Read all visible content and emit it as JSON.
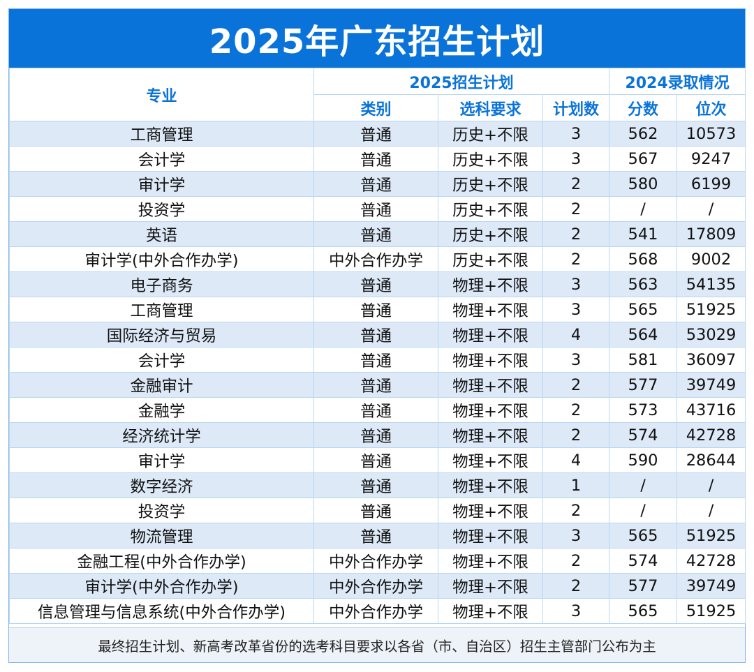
{
  "title": "2025年广东招生计划",
  "header": {
    "major": "专业",
    "plan_group": "2025招生计划",
    "admit_group": "2024录取情况",
    "category": "类别",
    "subject_req": "选科要求",
    "plan_count": "计划数",
    "score": "分数",
    "rank": "位次"
  },
  "rows": [
    {
      "major": "工商管理",
      "category": "普通",
      "subject": "历史+不限",
      "count": "3",
      "score": "562",
      "rank": "10573"
    },
    {
      "major": "会计学",
      "category": "普通",
      "subject": "历史+不限",
      "count": "3",
      "score": "567",
      "rank": "9247"
    },
    {
      "major": "审计学",
      "category": "普通",
      "subject": "历史+不限",
      "count": "2",
      "score": "580",
      "rank": "6199"
    },
    {
      "major": "投资学",
      "category": "普通",
      "subject": "历史+不限",
      "count": "2",
      "score": "/",
      "rank": "/"
    },
    {
      "major": "英语",
      "category": "普通",
      "subject": "历史+不限",
      "count": "2",
      "score": "541",
      "rank": "17809"
    },
    {
      "major": "审计学(中外合作办学)",
      "category": "中外合作办学",
      "subject": "历史+不限",
      "count": "2",
      "score": "568",
      "rank": "9002"
    },
    {
      "major": "电子商务",
      "category": "普通",
      "subject": "物理+不限",
      "count": "3",
      "score": "563",
      "rank": "54135"
    },
    {
      "major": "工商管理",
      "category": "普通",
      "subject": "物理+不限",
      "count": "3",
      "score": "565",
      "rank": "51925"
    },
    {
      "major": "国际经济与贸易",
      "category": "普通",
      "subject": "物理+不限",
      "count": "4",
      "score": "564",
      "rank": "53029"
    },
    {
      "major": "会计学",
      "category": "普通",
      "subject": "物理+不限",
      "count": "3",
      "score": "581",
      "rank": "36097"
    },
    {
      "major": "金融审计",
      "category": "普通",
      "subject": "物理+不限",
      "count": "2",
      "score": "577",
      "rank": "39749"
    },
    {
      "major": "金融学",
      "category": "普通",
      "subject": "物理+不限",
      "count": "2",
      "score": "573",
      "rank": "43716"
    },
    {
      "major": "经济统计学",
      "category": "普通",
      "subject": "物理+不限",
      "count": "2",
      "score": "574",
      "rank": "42728"
    },
    {
      "major": "审计学",
      "category": "普通",
      "subject": "物理+不限",
      "count": "4",
      "score": "590",
      "rank": "28644"
    },
    {
      "major": "数字经济",
      "category": "普通",
      "subject": "物理+不限",
      "count": "1",
      "score": "/",
      "rank": "/"
    },
    {
      "major": "投资学",
      "category": "普通",
      "subject": "物理+不限",
      "count": "2",
      "score": "/",
      "rank": "/"
    },
    {
      "major": "物流管理",
      "category": "普通",
      "subject": "物理+不限",
      "count": "3",
      "score": "565",
      "rank": "51925"
    },
    {
      "major": "金融工程(中外合作办学)",
      "category": "中外合作办学",
      "subject": "物理+不限",
      "count": "2",
      "score": "574",
      "rank": "42728"
    },
    {
      "major": "审计学(中外合作办学)",
      "category": "中外合作办学",
      "subject": "物理+不限",
      "count": "2",
      "score": "577",
      "rank": "39749"
    },
    {
      "major": "信息管理与信息系统(中外合作办学)",
      "category": "中外合作办学",
      "subject": "物理+不限",
      "count": "3",
      "score": "565",
      "rank": "51925"
    }
  ],
  "footer": "最终招生计划、新高考改革省份的选考科目要求以各省（市、自治区）招生主管部门公布为主",
  "colors": {
    "brand": "#0a73d9",
    "stripe": "#dde9f7",
    "border": "#b9d6f3"
  }
}
